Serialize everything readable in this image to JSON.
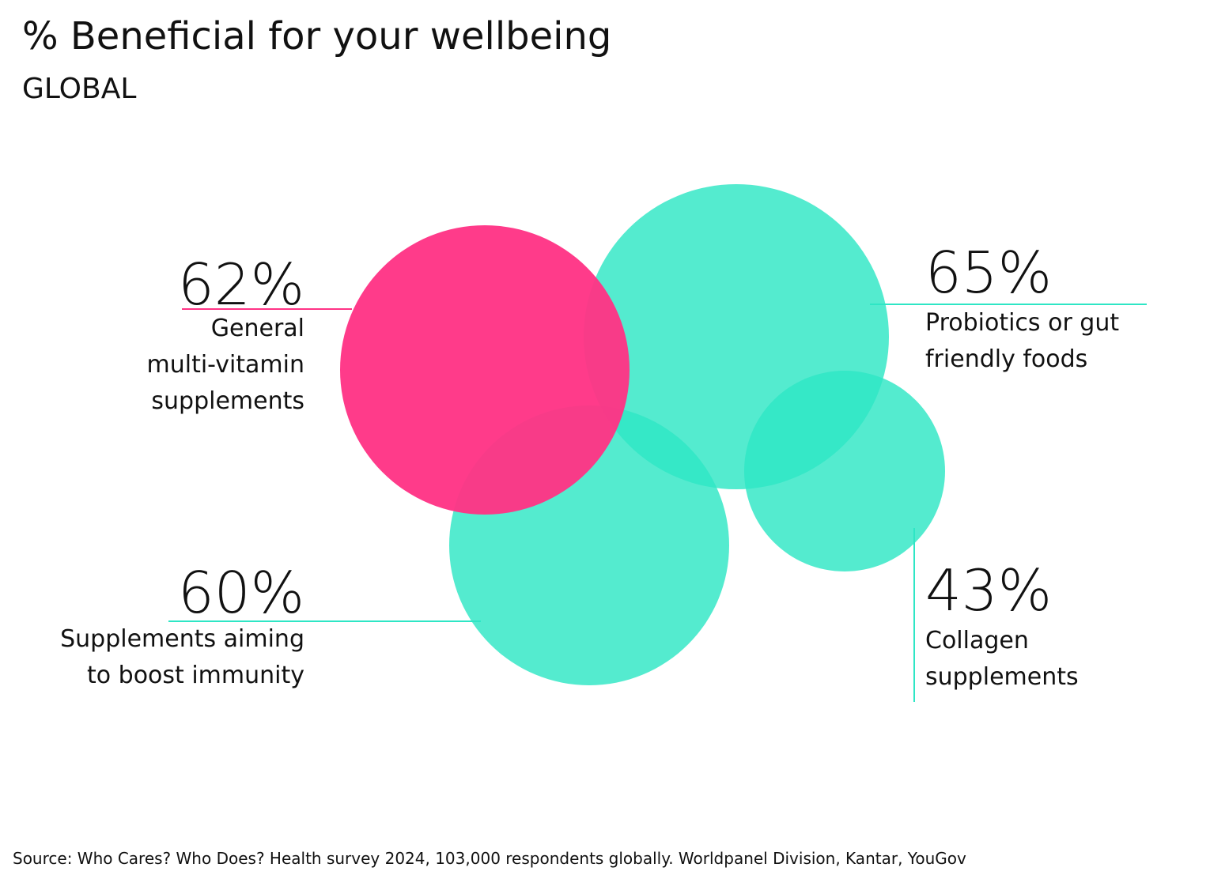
{
  "chart_data": {
    "type": "bubble",
    "title": "% Beneficial for your wellbeing",
    "subtitle": "GLOBAL",
    "unit": "%",
    "series": [
      {
        "label_lines": [
          "General",
          "multi-vitamin",
          "supplements"
        ],
        "value": 62,
        "value_label": "62%",
        "color": "#ff3385"
      },
      {
        "label_lines": [
          "Probiotics or gut",
          "friendly foods"
        ],
        "value": 65,
        "value_label": "65%",
        "color": "#2ee6c5"
      },
      {
        "label_lines": [
          "Supplements aiming",
          "to boost immunity"
        ],
        "value": 60,
        "value_label": "60%",
        "color": "#2ee6c5"
      },
      {
        "label_lines": [
          "Collagen",
          "supplements"
        ],
        "value": 43,
        "value_label": "43%",
        "color": "#2ee6c5"
      }
    ]
  },
  "source": "Source: Who Cares? Who Does? Health survey 2024, 103,000 respondents globally. Worldpanel Division, Kantar, YouGov"
}
